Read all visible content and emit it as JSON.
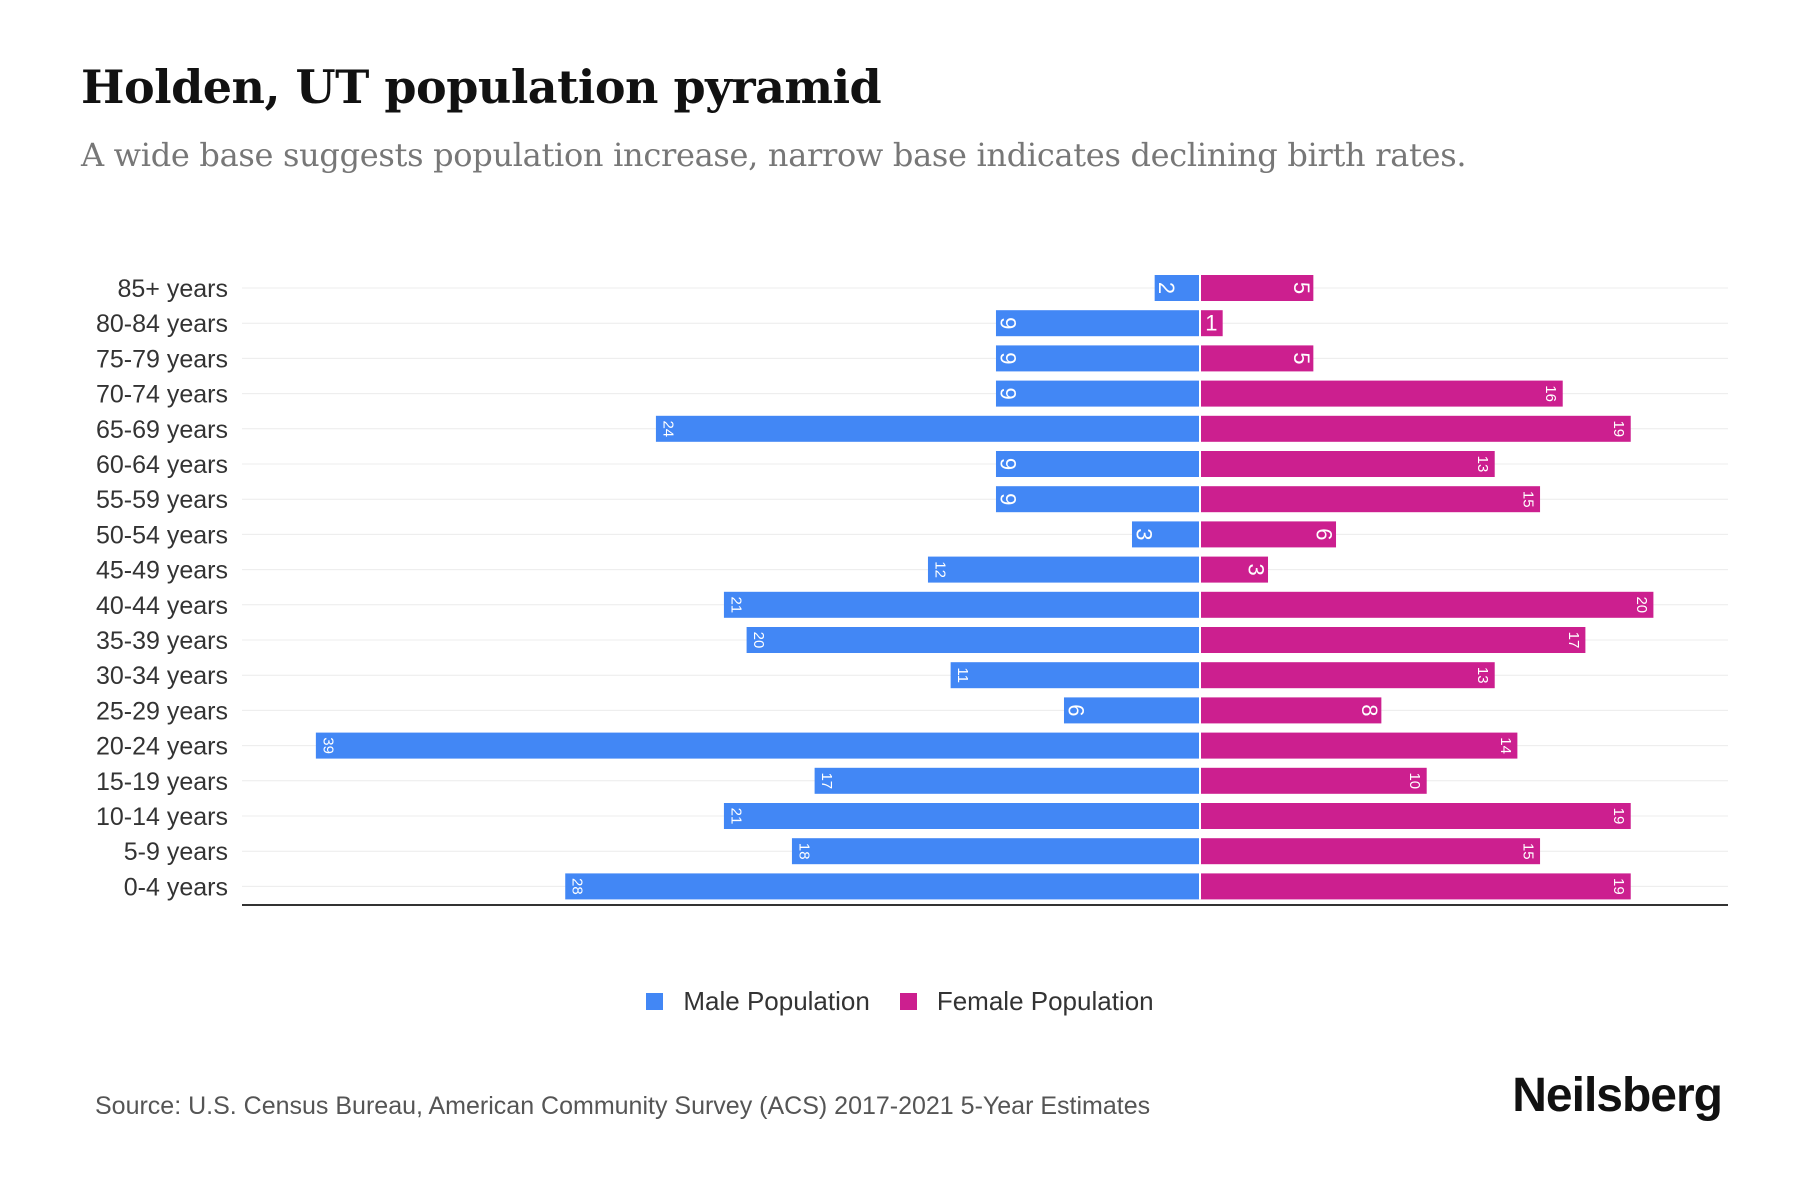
{
  "title": "Holden, UT population pyramid",
  "subtitle": "A wide base suggests population increase, narrow base indicates declining birth rates.",
  "source": "Source: U.S. Census Bureau, American Community Survey (ACS) 2017-2021 5-Year Estimates",
  "logo": "Neilsberg",
  "colors": {
    "male": "#4287f5",
    "female": "#cc1f8f"
  },
  "chart_data": {
    "type": "bar",
    "orientation": "horizontal-pyramid",
    "title": "Holden, UT population pyramid",
    "categories": [
      "85+ years",
      "80-84 years",
      "75-79 years",
      "70-74 years",
      "65-69 years",
      "60-64 years",
      "55-59 years",
      "50-54 years",
      "45-49 years",
      "40-44 years",
      "35-39 years",
      "30-34 years",
      "25-29 years",
      "20-24 years",
      "15-19 years",
      "10-14 years",
      "5-9 years",
      "0-4 years"
    ],
    "series": [
      {
        "name": "Male Population",
        "values": [
          2,
          9,
          9,
          9,
          24,
          9,
          9,
          3,
          12,
          21,
          20,
          11,
          6,
          39,
          17,
          21,
          18,
          28
        ]
      },
      {
        "name": "Female Population",
        "values": [
          5,
          1,
          5,
          16,
          19,
          13,
          15,
          6,
          3,
          20,
          17,
          13,
          8,
          14,
          10,
          19,
          15,
          19
        ]
      }
    ],
    "legend_position": "bottom-center",
    "grid": true
  }
}
